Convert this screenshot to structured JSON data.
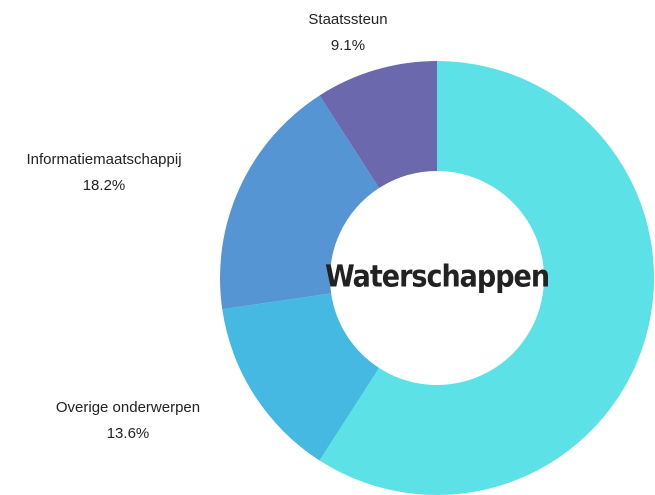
{
  "chart_data": {
    "type": "donut",
    "categories": [
      "Waterschappen",
      "Overige onderwerpen",
      "Informatiemaatschappij",
      "Staatssteun"
    ],
    "values": [
      59.1,
      13.6,
      18.2,
      9.1
    ],
    "value_labels": [
      null,
      "13.6%",
      "18.2%",
      "9.1%"
    ],
    "colors": [
      "#5ce1e6",
      "#45b9e1",
      "#5595d3",
      "#6b68ae"
    ],
    "center_label": "Waterschappen"
  }
}
